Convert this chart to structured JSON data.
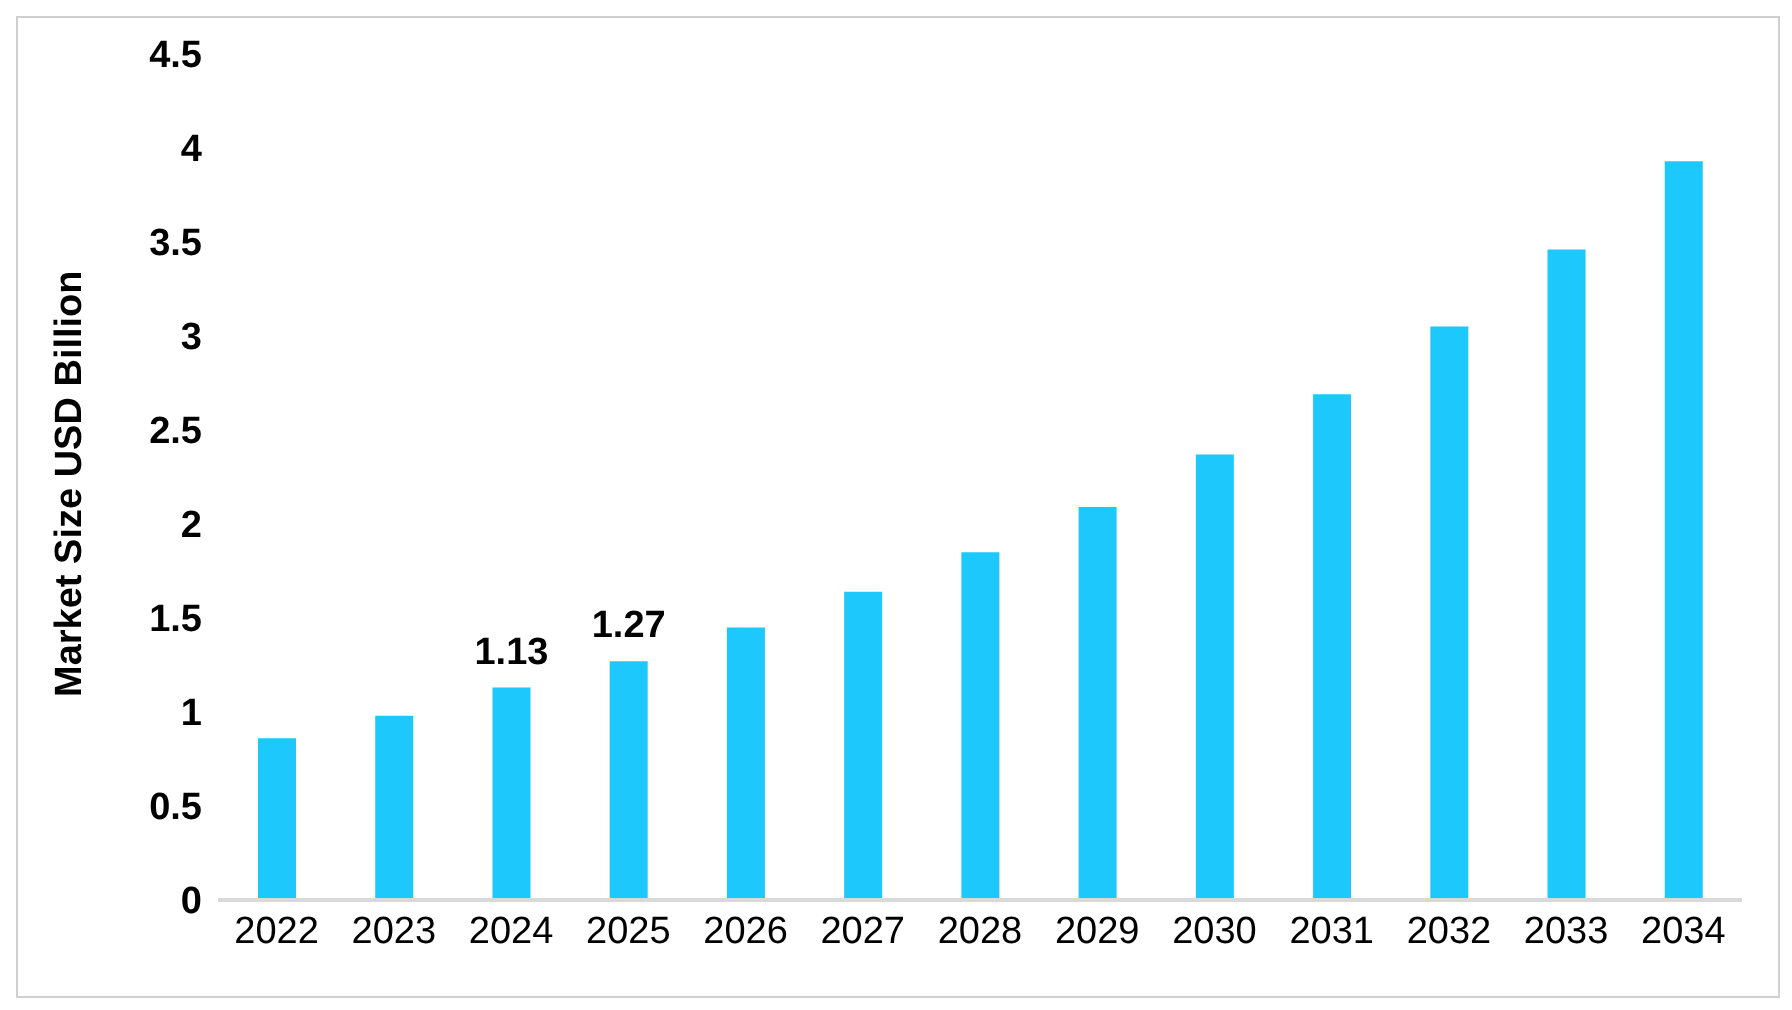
{
  "chart_data": {
    "type": "bar",
    "ylabel": "Market Size USD Billion",
    "categories": [
      "2022",
      "2023",
      "2024",
      "2025",
      "2026",
      "2027",
      "2028",
      "2029",
      "2030",
      "2031",
      "2032",
      "2033",
      "2034"
    ],
    "values": [
      0.86,
      0.98,
      1.13,
      1.27,
      1.45,
      1.64,
      1.85,
      2.09,
      2.37,
      2.69,
      3.05,
      3.46,
      3.93
    ],
    "value_labels": [
      null,
      null,
      "1.13",
      "1.27",
      null,
      null,
      null,
      null,
      null,
      null,
      null,
      null,
      null
    ],
    "color": "#1cc8fc",
    "ylim": [
      0,
      4.5
    ],
    "yticks": [
      0,
      0.5,
      1,
      1.5,
      2,
      2.5,
      3,
      3.5,
      4,
      4.5
    ],
    "grid": false,
    "legend": false
  }
}
